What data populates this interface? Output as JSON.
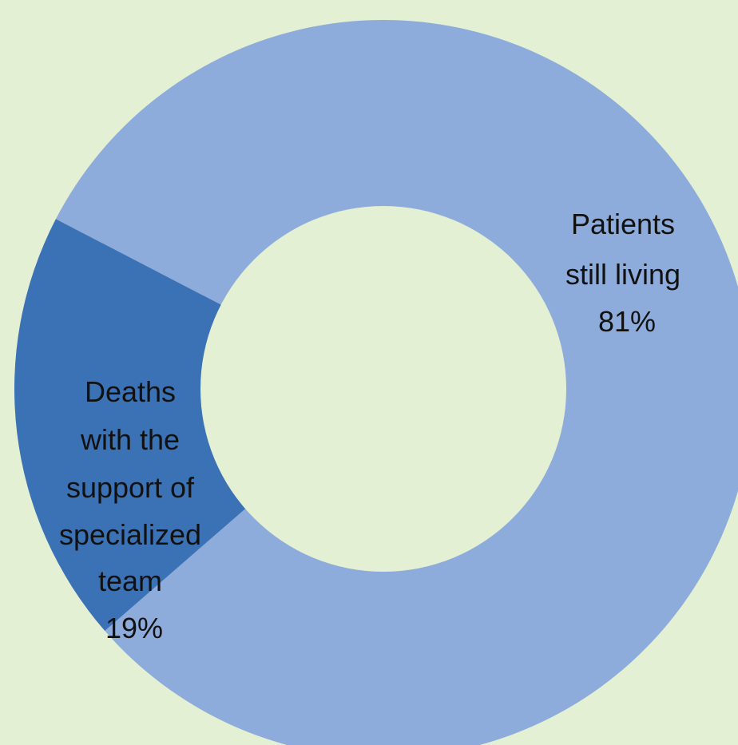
{
  "chart_data": {
    "type": "donut",
    "slices": [
      {
        "name": "Patients still living",
        "label_lines": [
          "Patients",
          "still living",
          "81%"
        ],
        "percent": 81,
        "color": "#8eacdb"
      },
      {
        "name": "Deaths with the support of specialized team",
        "label_lines": [
          "Deaths",
          "with the",
          "support of",
          "specialized",
          "team",
          "19%"
        ],
        "percent": 19,
        "color": "#3b72b6"
      }
    ],
    "background_color": "#e3f0d3",
    "legend": "none"
  }
}
